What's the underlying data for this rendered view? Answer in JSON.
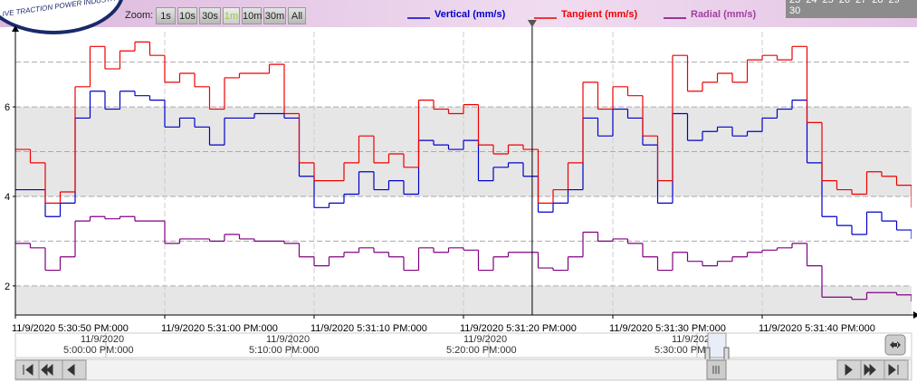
{
  "header": {
    "logo_text": "IVE TRACTION POWER INDUSTRY",
    "zoom_label": "Zoom:",
    "zoom_buttons": [
      "1s",
      "10s",
      "30s",
      "1m",
      "10m",
      "30m",
      "All"
    ],
    "active_zoom": 3,
    "calendar": {
      "row1": [
        "23",
        "24",
        "25",
        "26",
        "27",
        "28",
        "29"
      ],
      "row2": [
        "30"
      ]
    }
  },
  "chart_data": {
    "type": "line",
    "step": true,
    "x": [
      0,
      1,
      2,
      3,
      4,
      5,
      6,
      7,
      8,
      9,
      10,
      11,
      12,
      13,
      14,
      15,
      16,
      17,
      18,
      19,
      20,
      21,
      22,
      23,
      24,
      25,
      26,
      27,
      28,
      29,
      30,
      31,
      32,
      33,
      34,
      35,
      36,
      37,
      38,
      39,
      40,
      41,
      42,
      43,
      44,
      45,
      46,
      47,
      48,
      49,
      50,
      51,
      52,
      53,
      54,
      55,
      56,
      57,
      58,
      59,
      60
    ],
    "xlim": [
      0,
      60
    ],
    "xticks": [
      {
        "value": 0,
        "label": "11/9/2020 5:30:50 PM:000"
      },
      {
        "value": 10,
        "label": "11/9/2020 5:31:00 PM:000"
      },
      {
        "value": 20,
        "label": "11/9/2020 5:31:10 PM:000"
      },
      {
        "value": 30,
        "label": "11/9/2020 5:31:20 PM:000"
      },
      {
        "value": 40,
        "label": "11/9/2020 5:31:30 PM:000"
      },
      {
        "value": 50,
        "label": "11/9/2020 5:31:40 PM:000"
      }
    ],
    "ylim": [
      1.35,
      7.68
    ],
    "yticks": [
      2,
      4,
      6
    ],
    "ygrid": [
      2,
      3,
      4,
      5,
      6,
      7
    ],
    "grid": true,
    "bands": [
      [
        1.35,
        2
      ],
      [
        4,
        6
      ]
    ],
    "cursor": 34.6,
    "series": [
      {
        "name": "Vertical (mm/s)",
        "color": "#0000cc",
        "values": [
          4.15,
          4.15,
          3.55,
          3.85,
          5.75,
          6.35,
          5.95,
          6.35,
          6.25,
          6.15,
          5.55,
          5.75,
          5.55,
          5.15,
          5.75,
          5.75,
          5.85,
          5.85,
          5.75,
          4.45,
          3.75,
          3.85,
          4.05,
          4.55,
          4.15,
          4.35,
          4.05,
          5.25,
          5.15,
          5.05,
          5.25,
          4.35,
          4.65,
          4.75,
          4.45,
          3.65,
          3.85,
          4.15,
          5.75,
          5.35,
          5.95,
          5.75,
          5.15,
          3.85,
          5.85,
          5.25,
          5.45,
          5.55,
          5.35,
          5.45,
          5.75,
          5.95,
          6.15,
          4.75,
          3.55,
          3.35,
          3.15,
          3.65,
          3.45,
          3.25,
          3.05
        ]
      },
      {
        "name": "Tangient (mm/s)",
        "color": "#ee0000",
        "values": [
          5.05,
          4.75,
          3.85,
          4.1,
          6.45,
          7.35,
          6.85,
          7.25,
          7.45,
          7.15,
          6.55,
          6.75,
          6.45,
          5.95,
          6.65,
          6.75,
          6.75,
          6.95,
          5.85,
          4.75,
          4.35,
          4.35,
          4.75,
          5.35,
          4.75,
          4.95,
          4.65,
          6.15,
          5.95,
          5.85,
          6.05,
          5.15,
          4.95,
          5.15,
          5.05,
          3.85,
          4.15,
          4.75,
          6.55,
          5.95,
          6.45,
          6.25,
          5.35,
          4.35,
          7.15,
          6.35,
          6.55,
          6.75,
          6.55,
          7.05,
          7.15,
          7.05,
          7.35,
          5.65,
          4.35,
          4.15,
          4.05,
          4.55,
          4.45,
          4.25,
          3.75
        ]
      },
      {
        "name": "Radial (mm/s)",
        "color": "#800080",
        "legend_color": "#a040a0",
        "values": [
          2.95,
          2.85,
          2.35,
          2.65,
          3.45,
          3.55,
          3.5,
          3.55,
          3.45,
          3.45,
          2.95,
          3.05,
          3.05,
          3.0,
          3.15,
          3.05,
          3.0,
          3.0,
          2.95,
          2.65,
          2.45,
          2.65,
          2.75,
          2.85,
          2.75,
          2.65,
          2.35,
          2.85,
          2.75,
          2.85,
          2.8,
          2.35,
          2.65,
          2.75,
          2.75,
          2.4,
          2.35,
          2.65,
          3.2,
          3.0,
          3.05,
          2.95,
          2.65,
          2.35,
          2.75,
          2.55,
          2.45,
          2.55,
          2.65,
          2.75,
          2.8,
          2.85,
          2.95,
          2.45,
          1.75,
          1.75,
          1.7,
          1.85,
          1.85,
          1.8,
          1.65
        ]
      }
    ]
  },
  "navigator": {
    "labels": [
      {
        "date": "11/9/2020",
        "time": "5:00:00 PM:000"
      },
      {
        "date": "11/9/2020",
        "time": "5:10:00 PM:000"
      },
      {
        "date": "11/9/2020",
        "time": "5:20:00 PM:000"
      },
      {
        "date": "11/9/2020",
        "time": "5:30:00 PM:000"
      }
    ]
  }
}
